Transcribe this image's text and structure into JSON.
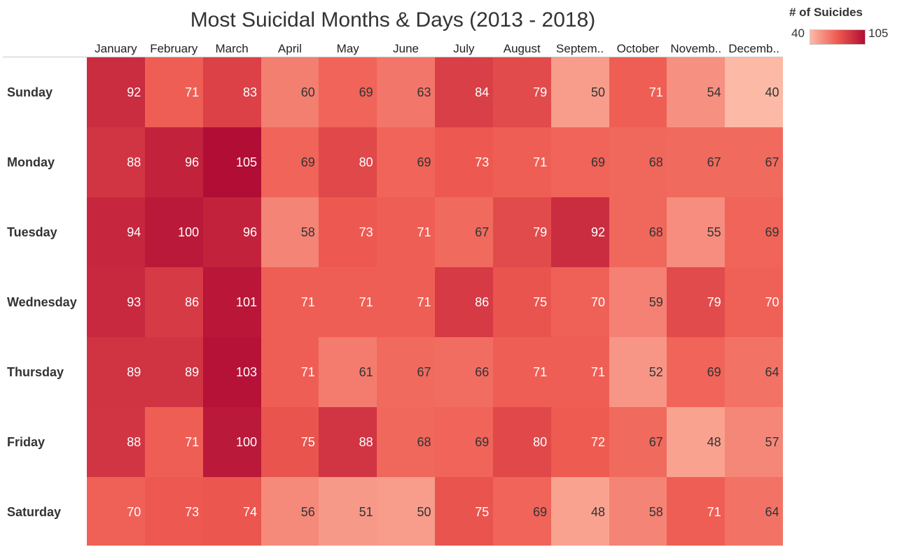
{
  "chart_data": {
    "type": "heatmap",
    "title": "Most Suicidal Months & Days (2013 - 2018)",
    "x": [
      "January",
      "February",
      "March",
      "April",
      "May",
      "June",
      "July",
      "August",
      "Septem..",
      "October",
      "Novemb..",
      "Decemb.."
    ],
    "y": [
      "Sunday",
      "Monday",
      "Tuesday",
      "Wednesday",
      "Thursday",
      "Friday",
      "Saturday"
    ],
    "values": [
      [
        92,
        71,
        83,
        60,
        69,
        63,
        84,
        79,
        50,
        71,
        54,
        40
      ],
      [
        88,
        96,
        105,
        69,
        80,
        69,
        73,
        71,
        69,
        68,
        67,
        67
      ],
      [
        94,
        100,
        96,
        58,
        73,
        71,
        67,
        79,
        92,
        68,
        55,
        69
      ],
      [
        93,
        86,
        101,
        71,
        71,
        71,
        86,
        75,
        70,
        59,
        79,
        70
      ],
      [
        89,
        89,
        103,
        71,
        61,
        67,
        66,
        71,
        71,
        52,
        69,
        64
      ],
      [
        88,
        71,
        100,
        75,
        88,
        68,
        69,
        80,
        72,
        67,
        48,
        57
      ],
      [
        70,
        73,
        74,
        56,
        51,
        50,
        75,
        69,
        48,
        58,
        71,
        64
      ]
    ],
    "color_scale": {
      "title": "# of Suicides",
      "min": 40,
      "max": 105,
      "min_label": "40",
      "max_label": "105",
      "low_color": "#fcb9a5",
      "high_color": "#b20d35"
    },
    "legend_position": "top-right"
  }
}
